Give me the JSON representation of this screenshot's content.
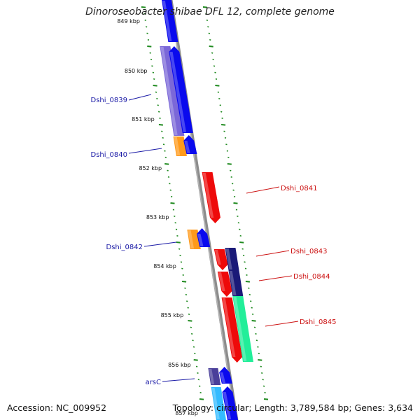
{
  "title": "Dinoroseobacter shibae DFL 12, complete genome",
  "accession": "Accession: NC_009952",
  "summary": "Topology: circular; Length: 3,789,584 bp; Genes: 3,634",
  "ticks": [
    {
      "label": "849 kbp"
    },
    {
      "label": "850 kbp"
    },
    {
      "label": "851 kbp"
    },
    {
      "label": "852 kbp"
    },
    {
      "label": "853 kbp"
    },
    {
      "label": "854 kbp"
    },
    {
      "label": "855 kbp"
    },
    {
      "label": "856 kbp"
    },
    {
      "label": "857 kbp"
    }
  ],
  "gene_labels": [
    {
      "text": "Dshi_0839",
      "side": "left",
      "color": "#1a1aa6"
    },
    {
      "text": "Dshi_0840",
      "side": "left",
      "color": "#1a1aa6"
    },
    {
      "text": "Dshi_0842",
      "side": "left",
      "color": "#1a1aa6"
    },
    {
      "text": "arsC",
      "side": "left",
      "color": "#1a1aa6"
    },
    {
      "text": "Dshi_0841",
      "side": "right",
      "color": "#cc1111"
    },
    {
      "text": "Dshi_0843",
      "side": "right",
      "color": "#cc1111"
    },
    {
      "text": "Dshi_0844",
      "side": "right",
      "color": "#cc1111"
    },
    {
      "text": "Dshi_0845",
      "side": "right",
      "color": "#cc1111"
    }
  ],
  "colors": {
    "backbone": "#8c8c8c",
    "forward_cds": "#0a0aee",
    "reverse_cds": "#ee0a0a",
    "forward_gene": "#7b68d8",
    "forward_gene_light": "#ff9a1a",
    "reverse_gene": "#1a1a78",
    "reverse_gene_green": "#22ee99",
    "forward_light": "#33bbff",
    "tick": "#1f8a1f",
    "left_label": "#1a1aa6",
    "right_label": "#cc1111"
  }
}
